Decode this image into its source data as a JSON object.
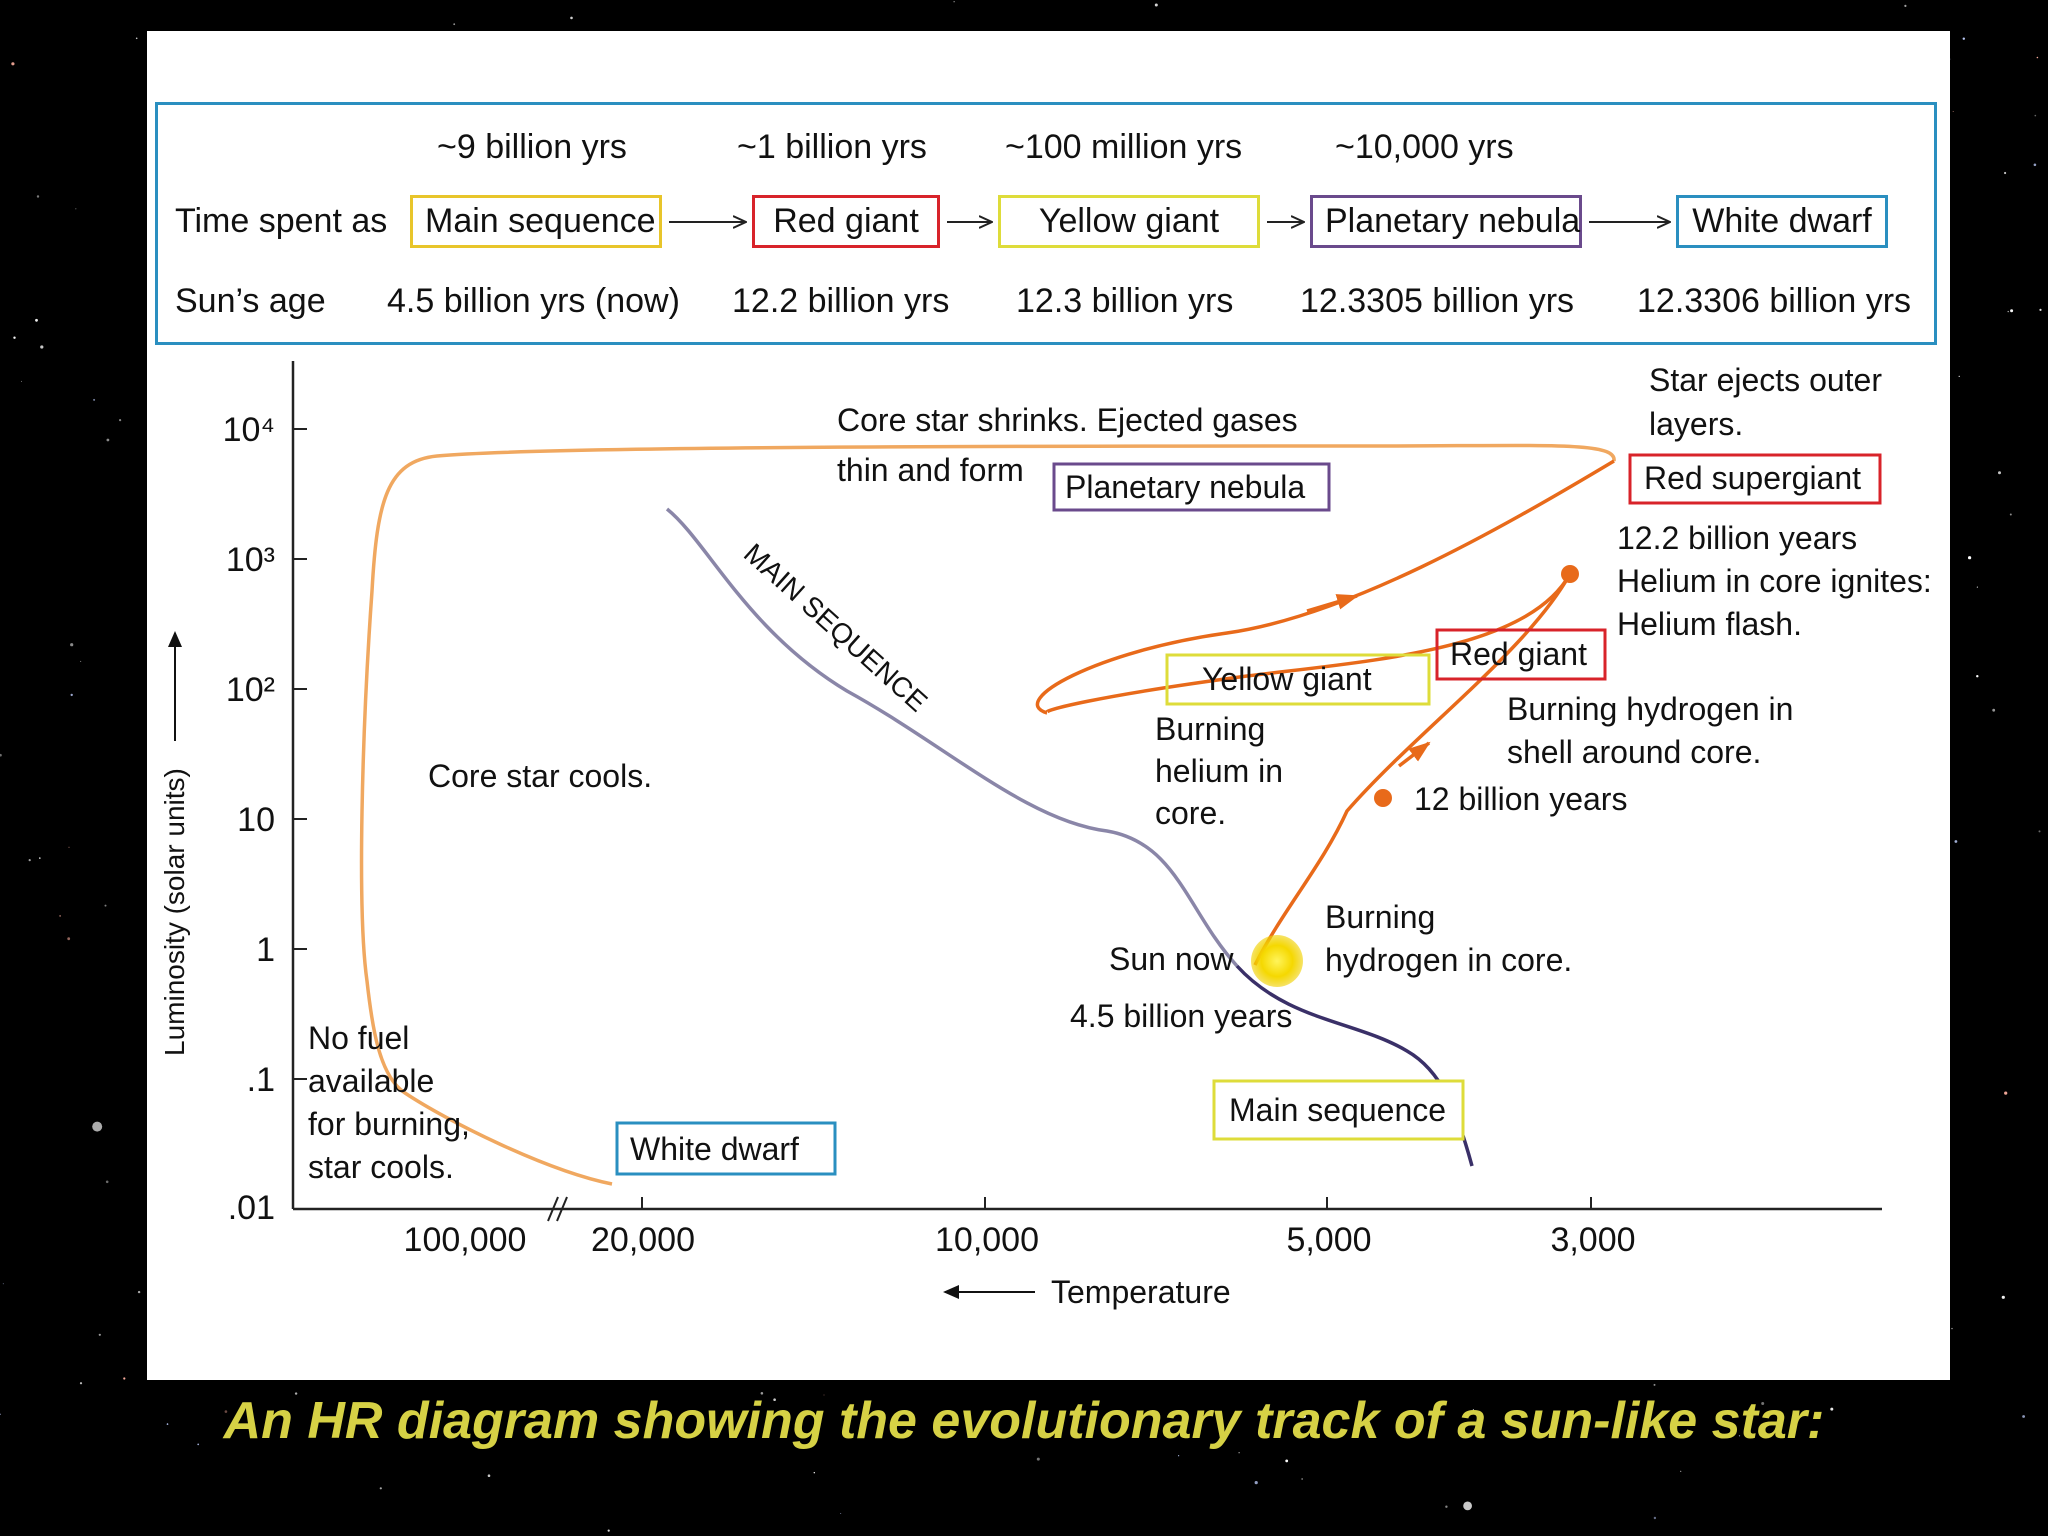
{
  "caption": "An HR diagram showing the evolutionary track of a sun-like star:",
  "colors": {
    "main_sequence": "#e8c52a",
    "red_giant": "#d8232a",
    "yellow_giant": "#dedc3a",
    "planetary_nebula": "#6a4a8c",
    "white_dwarf": "#2a8fc0",
    "track_orange": "#e86a1a",
    "track_light": "#f0a860",
    "main_sequence_line": "#8a86a8",
    "caption": "#d6d145"
  },
  "timeline": {
    "row_time_label": "Time spent as",
    "row_age_label": "Sun’s age",
    "stages": [
      {
        "name": "Main sequence",
        "duration": "~9 billion yrs",
        "sun_age": "4.5 billion yrs (now)"
      },
      {
        "name": "Red giant",
        "duration": "~1 billion yrs",
        "sun_age": "12.2 billion yrs"
      },
      {
        "name": "Yellow giant",
        "duration": "~100 million yrs",
        "sun_age": "12.3 billion yrs"
      },
      {
        "name": "Planetary nebula",
        "duration": "~10,000 yrs",
        "sun_age": "12.3305 billion yrs"
      },
      {
        "name": "White dwarf",
        "duration": "",
        "sun_age": "12.3306 billion yrs"
      }
    ]
  },
  "axes": {
    "y_label": "Luminosity (solar units)",
    "y_ticks": [
      "10⁴",
      "10³",
      "10²",
      "10",
      "1",
      ".1",
      ".01"
    ],
    "x_label": "Temperature",
    "x_ticks": [
      "100,000",
      "20,000",
      "10,000",
      "5,000",
      "3,000"
    ]
  },
  "annotations": {
    "core_shrinks_1": "Core star shrinks. Ejected gases",
    "core_shrinks_2": "thin and form",
    "ejects_1": "Star ejects outer",
    "ejects_2": "layers.",
    "helium_1": "12.2 billion years",
    "helium_2": "Helium in core ignites:",
    "helium_3": "Helium flash.",
    "main_sequence_curve": "MAIN SEQUENCE",
    "burning_helium_1": "Burning",
    "burning_helium_2": "helium in",
    "burning_helium_3": "core.",
    "shell_1": "Burning hydrogen in",
    "shell_2": "shell around core.",
    "twelve_billion": "12 billion years",
    "core_cools": "Core star cools.",
    "hydrogen_core_1": "Burning",
    "hydrogen_core_2": "hydrogen in core.",
    "sun_now": "Sun now",
    "sun_age": "4.5 billion years",
    "no_fuel_1": "No fuel",
    "no_fuel_2": "available",
    "no_fuel_3": "for burning,",
    "no_fuel_4": "star cools."
  },
  "boxes": {
    "planetary_nebula": "Planetary nebula",
    "red_supergiant": "Red supergiant",
    "yellow_giant": "Yellow giant",
    "red_giant": "Red giant",
    "main_sequence": "Main sequence",
    "white_dwarf": "White dwarf"
  }
}
